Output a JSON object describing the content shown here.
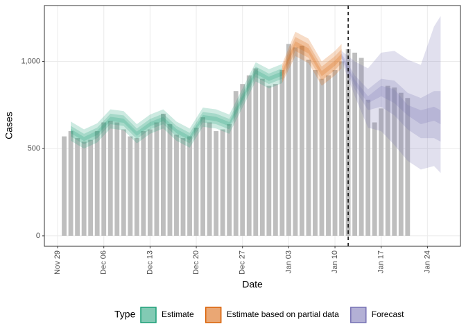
{
  "chart_data": {
    "type": "bar",
    "x_label": "Date",
    "y_label": "Cases",
    "x": [
      "Nov 30",
      "Dec 01",
      "Dec 02",
      "Dec 03",
      "Dec 04",
      "Dec 05",
      "Dec 06",
      "Dec 07",
      "Dec 08",
      "Dec 09",
      "Dec 10",
      "Dec 11",
      "Dec 12",
      "Dec 13",
      "Dec 14",
      "Dec 15",
      "Dec 16",
      "Dec 17",
      "Dec 18",
      "Dec 19",
      "Dec 20",
      "Dec 21",
      "Dec 22",
      "Dec 23",
      "Dec 24",
      "Dec 25",
      "Dec 26",
      "Dec 27",
      "Dec 28",
      "Dec 29",
      "Dec 30",
      "Dec 31",
      "Jan 01",
      "Jan 02",
      "Jan 03",
      "Jan 04",
      "Jan 05",
      "Jan 06",
      "Jan 07",
      "Jan 08",
      "Jan 09",
      "Jan 10",
      "Jan 11",
      "Jan 12",
      "Jan 13",
      "Jan 14",
      "Jan 15",
      "Jan 16",
      "Jan 17",
      "Jan 18",
      "Jan 19",
      "Jan 20",
      "Jan 21"
    ],
    "values": [
      570,
      600,
      560,
      540,
      550,
      600,
      650,
      660,
      650,
      610,
      570,
      560,
      600,
      610,
      650,
      700,
      640,
      580,
      560,
      570,
      620,
      680,
      650,
      600,
      610,
      640,
      830,
      870,
      920,
      960,
      900,
      860,
      870,
      950,
      1100,
      1080,
      1090,
      1010,
      950,
      900,
      920,
      950,
      1000,
      1070,
      1050,
      1020,
      780,
      650,
      730,
      860,
      850,
      820,
      790
    ],
    "color": "#bebebe",
    "xlim": [
      "Nov 27",
      "Jan 29"
    ],
    "xticks": [
      "Nov 29",
      "Dec 06",
      "Dec 13",
      "Dec 20",
      "Dec 27",
      "Jan 03",
      "Jan 10",
      "Jan 17",
      "Jan 24"
    ],
    "ylim": [
      -60,
      1320
    ],
    "yticks": [
      0,
      500,
      {
        "value": 1000,
        "label": "1,000"
      }
    ],
    "grid": true,
    "vline": "Jan 12",
    "legend_title": "Type",
    "legend": "bottom",
    "ribbons": [
      {
        "name": "Estimate",
        "color": "#1b9e77",
        "x": [
          "Dec 01",
          "Dec 03",
          "Dec 05",
          "Dec 07",
          "Dec 09",
          "Dec 11",
          "Dec 13",
          "Dec 15",
          "Dec 17",
          "Dec 19",
          "Dec 21",
          "Dec 23",
          "Dec 25",
          "Dec 27",
          "Dec 29",
          "Dec 31",
          "Jan 02"
        ],
        "bands": [
          {
            "lower": [
              545,
              500,
              535,
              615,
              605,
              530,
              585,
              615,
              545,
              505,
              625,
              615,
              585,
              735,
              885,
              845,
              875
            ],
            "upper": [
              655,
              610,
              645,
              725,
              715,
              640,
              695,
              725,
              655,
              615,
              735,
              725,
              695,
              845,
              995,
              955,
              985
            ]
          },
          {
            "lower": [
              570,
              525,
              560,
              640,
              630,
              555,
              610,
              640,
              570,
              530,
              650,
              640,
              610,
              760,
              910,
              870,
              900
            ],
            "upper": [
              630,
              585,
              620,
              700,
              690,
              615,
              670,
              700,
              630,
              590,
              710,
              700,
              670,
              820,
              970,
              930,
              960
            ]
          },
          {
            "lower": [
              588,
              543,
              578,
              658,
              648,
              573,
              628,
              658,
              588,
              548,
              668,
              658,
              628,
              778,
              928,
              888,
              918
            ],
            "upper": [
              612,
              567,
              602,
              682,
              672,
              597,
              652,
              682,
              612,
              572,
              692,
              682,
              652,
              802,
              952,
              912,
              942
            ]
          }
        ]
      },
      {
        "name": "Estimate based on partial data",
        "color": "#d95f02",
        "x": [
          "Jan 02",
          "Jan 04",
          "Jan 06",
          "Jan 08",
          "Jan 10",
          "Jan 11"
        ],
        "bands": [
          {
            "lower": [
              875,
              1030,
              990,
              860,
              920,
              960
            ],
            "upper": [
              985,
              1170,
              1130,
              1000,
              1060,
              1100
            ]
          },
          {
            "lower": [
              890,
              1060,
              1020,
              890,
              950,
              990
            ],
            "upper": [
              970,
              1140,
              1100,
              970,
              1030,
              1070
            ]
          },
          {
            "lower": [
              915,
              1085,
              1045,
              915,
              975,
              1015
            ],
            "upper": [
              945,
              1115,
              1075,
              945,
              1005,
              1045
            ]
          }
        ]
      },
      {
        "name": "Forecast",
        "color": "#7570b3",
        "x": [
          "Jan 11",
          "Jan 13",
          "Jan 15",
          "Jan 17",
          "Jan 19",
          "Jan 21",
          "Jan 23",
          "Jan 25",
          "Jan 26"
        ],
        "bands": [
          {
            "lower": [
              1000,
              800,
              620,
              600,
              520,
              430,
              380,
              400,
              360
            ],
            "upper": [
              1060,
              1000,
              960,
              1050,
              1060,
              1010,
              980,
              1200,
              1260
            ]
          },
          {
            "lower": [
              1015,
              840,
              720,
              740,
              690,
              610,
              560,
              560,
              540
            ],
            "upper": [
              1045,
              920,
              840,
              900,
              890,
              820,
              790,
              830,
              830
            ]
          },
          {
            "lower": [
              1025,
              865,
              760,
              800,
              760,
              690,
              640,
              660,
              640
            ],
            "upper": [
              1035,
              895,
              800,
              860,
              840,
              750,
              720,
              740,
              720
            ]
          }
        ]
      }
    ]
  }
}
